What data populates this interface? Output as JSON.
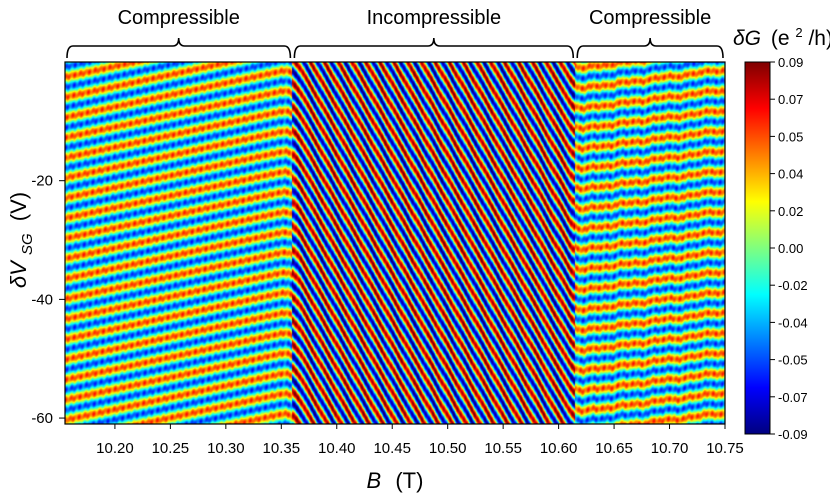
{
  "chart_data": {
    "type": "heatmap",
    "title": "",
    "xlabel": "B (T)",
    "ylabel": "δV_SG (V)",
    "xlim": [
      10.155,
      10.75
    ],
    "ylim": [
      -61,
      0
    ],
    "x_ticks": [
      "10.20",
      "10.25",
      "10.30",
      "10.35",
      "10.40",
      "10.45",
      "10.50",
      "10.55",
      "10.60",
      "10.65",
      "10.70",
      "10.75"
    ],
    "y_ticks": [
      "-20",
      "-40",
      "-60"
    ],
    "regions": [
      {
        "label": "Compressible",
        "from": 10.155,
        "to": 10.36
      },
      {
        "label": "Incompressible",
        "from": 10.36,
        "to": 10.615
      },
      {
        "label": "Compressible",
        "from": 10.615,
        "to": 10.75
      }
    ],
    "colorbar": {
      "title": "δG (e²/h)",
      "min": -0.09,
      "max": 0.09,
      "ticks": [
        "0.09",
        "0.07",
        "0.05",
        "0.04",
        "0.02",
        "0.00",
        "-0.02",
        "-0.04",
        "-0.05",
        "-0.07",
        "-0.09"
      ],
      "colormap": [
        "#00007f",
        "#0000ff",
        "#007fff",
        "#00ffff",
        "#7fff7f",
        "#ffff00",
        "#ff7f00",
        "#ff0000",
        "#7f0000"
      ]
    },
    "pattern": {
      "description_free_params": true,
      "compressible_slope_V_per_T": 40,
      "incompressible_slope_V_per_T": -320,
      "period_compressible_V": 3.4,
      "period_incompressible_V": 4.0
    }
  },
  "axes": {
    "x_label_symbol": "B",
    "x_label_unit": "(T)",
    "y_label_symbol": "δV",
    "y_label_sub": "SG",
    "y_label_unit": "(V)"
  },
  "colorbar_title": {
    "symbol": "δG",
    "unit_open": "(e",
    "unit_sup": "2",
    "unit_close": "/h)"
  }
}
